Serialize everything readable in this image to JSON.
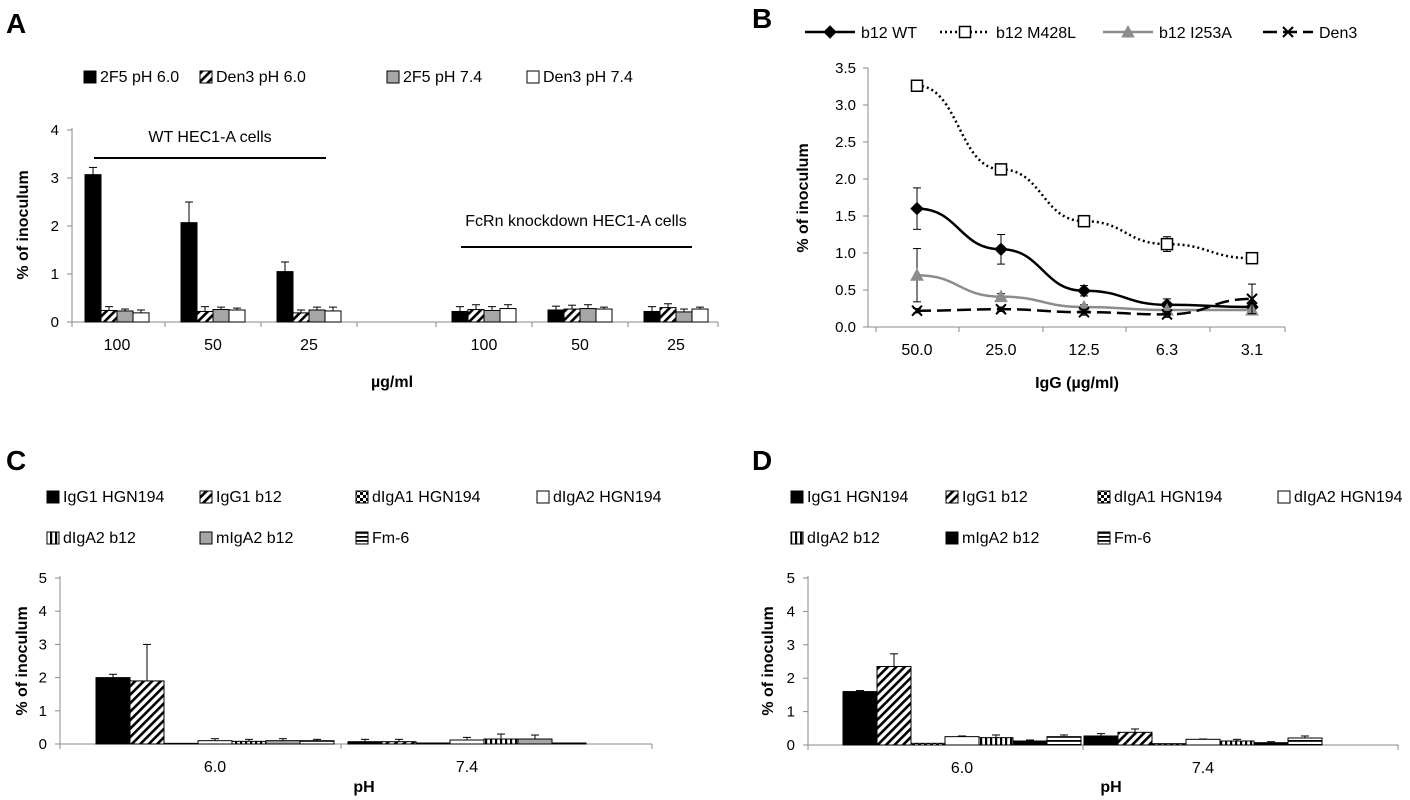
{
  "panels": {
    "A": {
      "letter": "A"
    },
    "B": {
      "letter": "B"
    },
    "C": {
      "letter": "C"
    },
    "D": {
      "letter": "D"
    }
  },
  "chart_data": [
    {
      "panel": "A",
      "type": "bar",
      "xlabel": "µg/ml",
      "ylabel": "% of inoculum",
      "ylim": [
        0,
        4
      ],
      "yticks": [
        0,
        1,
        2,
        3,
        4
      ],
      "groups": [
        {
          "label": "WT HEC1-A cells",
          "categories": [
            "100",
            "50",
            "25"
          ]
        },
        {
          "label": "FcRn knockdown HEC1-A cells",
          "categories": [
            "100",
            "50",
            "25"
          ]
        }
      ],
      "categories": [
        "100",
        "50",
        "25",
        "100",
        "50",
        "25"
      ],
      "legend_position": "top",
      "series": [
        {
          "name": "2F5  pH 6.0",
          "fill": "solid-black",
          "values": [
            3.07,
            2.07,
            1.05,
            0.22,
            0.25,
            0.22
          ],
          "errors": [
            0.15,
            0.43,
            0.2,
            0.1,
            0.08,
            0.1
          ]
        },
        {
          "name": "Den3  pH 6.0",
          "fill": "diagonal-hatch",
          "values": [
            0.24,
            0.22,
            0.19,
            0.26,
            0.27,
            0.3
          ],
          "errors": [
            0.08,
            0.1,
            0.06,
            0.1,
            0.08,
            0.08
          ]
        },
        {
          "name": "2F5  pH 7.4",
          "fill": "solid-gray",
          "values": [
            0.23,
            0.26,
            0.25,
            0.24,
            0.28,
            0.21
          ],
          "errors": [
            0.04,
            0.05,
            0.06,
            0.08,
            0.08,
            0.06
          ]
        },
        {
          "name": "Den3  pH 7.4",
          "fill": "solid-white",
          "values": [
            0.19,
            0.25,
            0.23,
            0.28,
            0.27,
            0.27
          ],
          "errors": [
            0.06,
            0.04,
            0.08,
            0.08,
            0.04,
            0.04
          ]
        }
      ]
    },
    {
      "panel": "B",
      "type": "line",
      "xlabel": "IgG (µg/ml)",
      "ylabel": "% of inoculum",
      "categories": [
        "50.0",
        "25.0",
        "12.5",
        "6.3",
        "3.1"
      ],
      "ylim": [
        0,
        3.5
      ],
      "yticks": [
        "0.0",
        "0.5",
        "1.0",
        "1.5",
        "2.0",
        "2.5",
        "3.0",
        "3.5"
      ],
      "legend_position": "top",
      "series": [
        {
          "name": "b12 WT",
          "color": "#000000",
          "line": "solid",
          "marker": "diamond",
          "values": [
            1.6,
            1.05,
            0.49,
            0.3,
            0.27
          ],
          "errors": [
            0.28,
            0.2,
            0.07,
            0.08,
            0.06
          ]
        },
        {
          "name": "b12 M428L",
          "color": "#000000",
          "line": "dotted",
          "marker": "square-open",
          "values": [
            3.26,
            2.13,
            1.43,
            1.12,
            0.93
          ],
          "errors": [
            0.04,
            0.04,
            0.05,
            0.1,
            0.04
          ]
        },
        {
          "name": "b12 I253A",
          "color": "#8c8c8c",
          "line": "solid",
          "marker": "triangle",
          "values": [
            0.7,
            0.41,
            0.27,
            0.23,
            0.23
          ],
          "errors": [
            0.36,
            0.04,
            0.03,
            0.04,
            0.03
          ]
        },
        {
          "name": "Den3",
          "color": "#000000",
          "line": "dashed",
          "marker": "x",
          "values": [
            0.22,
            0.24,
            0.2,
            0.17,
            0.38
          ],
          "errors": [
            0.03,
            0.03,
            0.04,
            0.04,
            0.2
          ]
        }
      ]
    },
    {
      "panel": "C",
      "type": "bar",
      "xlabel": "pH",
      "ylabel": "% of inoculum",
      "ylim": [
        0,
        5
      ],
      "yticks": [
        0,
        1,
        2,
        3,
        4,
        5
      ],
      "categories": [
        "6.0",
        "7.4"
      ],
      "legend_position": "top",
      "series": [
        {
          "name": "IgG1 HGN194",
          "fill": "solid-black",
          "values": [
            2.0,
            0.07
          ],
          "errors": [
            0.1,
            0.07
          ]
        },
        {
          "name": "IgG1 b12",
          "fill": "diagonal-hatch",
          "values": [
            1.9,
            0.07
          ],
          "errors": [
            1.1,
            0.07
          ]
        },
        {
          "name": "dIgA1 HGN194",
          "fill": "checker",
          "values": [
            0.02,
            0.03
          ],
          "errors": [
            0.0,
            0.0
          ]
        },
        {
          "name": "dIgA2 HGN194",
          "fill": "solid-white",
          "values": [
            0.1,
            0.12
          ],
          "errors": [
            0.06,
            0.08
          ]
        },
        {
          "name": "dIgA2 b12",
          "fill": "vertical-stripe",
          "values": [
            0.08,
            0.15
          ],
          "errors": [
            0.06,
            0.15
          ]
        },
        {
          "name": "mIgA2 b12",
          "fill": "solid-gray",
          "values": [
            0.1,
            0.15
          ],
          "errors": [
            0.06,
            0.12
          ]
        },
        {
          "name": "Fm-6",
          "fill": "horizontal-stripe",
          "values": [
            0.1,
            0.03
          ],
          "errors": [
            0.04,
            0.0
          ]
        }
      ]
    },
    {
      "panel": "D",
      "type": "bar",
      "xlabel": "pH",
      "ylabel": "% of inoculum",
      "ylim": [
        0,
        5
      ],
      "yticks": [
        0,
        1,
        2,
        3,
        4,
        5
      ],
      "categories": [
        "6.0",
        "7.4"
      ],
      "legend_position": "top",
      "series": [
        {
          "name": "IgG1 HGN194",
          "fill": "solid-black",
          "values": [
            1.6,
            0.27
          ],
          "errors": [
            0.03,
            0.07
          ]
        },
        {
          "name": "IgG1 b12",
          "fill": "diagonal-hatch",
          "values": [
            2.35,
            0.38
          ],
          "errors": [
            0.38,
            0.1
          ]
        },
        {
          "name": "dIgA1 HGN194",
          "fill": "checker",
          "values": [
            0.05,
            0.04
          ],
          "errors": [
            0.0,
            0.0
          ]
        },
        {
          "name": "dIgA2 HGN194",
          "fill": "solid-white",
          "values": [
            0.25,
            0.17
          ],
          "errors": [
            0.02,
            0.01
          ]
        },
        {
          "name": "dIgA2 b12",
          "fill": "vertical-stripe",
          "values": [
            0.22,
            0.12
          ],
          "errors": [
            0.08,
            0.05
          ]
        },
        {
          "name": "mIgA2 b12",
          "fill": "solid-black",
          "values": [
            0.12,
            0.07
          ],
          "errors": [
            0.03,
            0.03
          ]
        },
        {
          "name": "Fm-6",
          "fill": "horizontal-stripe",
          "values": [
            0.25,
            0.21
          ],
          "errors": [
            0.05,
            0.06
          ]
        }
      ]
    }
  ]
}
